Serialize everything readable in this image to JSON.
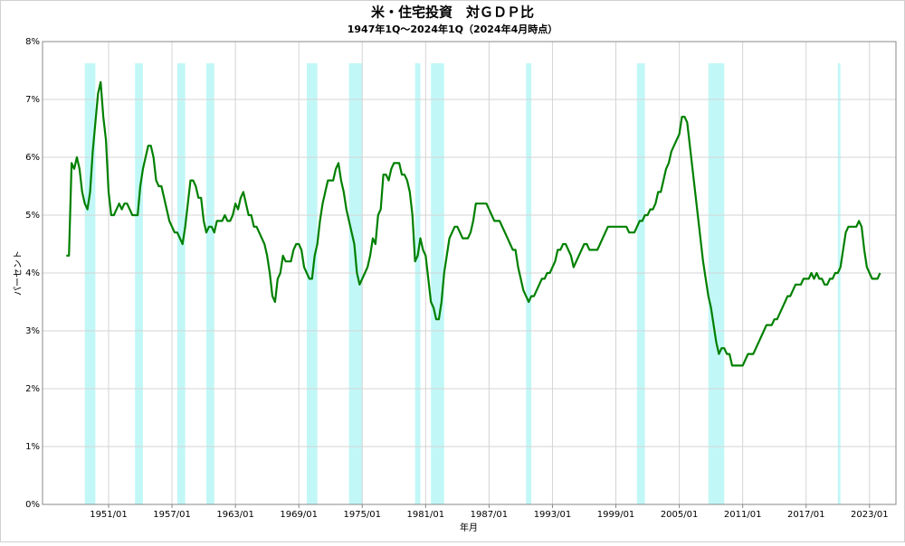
{
  "chart_data": {
    "type": "line",
    "title": "米・住宅投資　対ＧＤＰ比",
    "subtitle": "1947年1Q～2024年1Q（2024年4月時点）",
    "xlabel": "年月",
    "ylabel": "パーセント",
    "xlim": [
      "1944/10",
      "2025/07"
    ],
    "xticks": [
      "1951/01",
      "1957/01",
      "1963/01",
      "1969/01",
      "1975/01",
      "1981/01",
      "1987/01",
      "1993/01",
      "1999/01",
      "2005/01",
      "2011/01",
      "2017/01",
      "2023/01"
    ],
    "ylim": [
      0,
      8
    ],
    "yticks": [
      {
        "value": 0,
        "label": "0%"
      },
      {
        "value": 1,
        "label": "1%"
      },
      {
        "value": 2,
        "label": "2%"
      },
      {
        "value": 3,
        "label": "3%"
      },
      {
        "value": 4,
        "label": "4%"
      },
      {
        "value": 5,
        "label": "5%"
      },
      {
        "value": 6,
        "label": "6%"
      },
      {
        "value": 7,
        "label": "7%"
      },
      {
        "value": 8,
        "label": "8%"
      }
    ],
    "grid": true,
    "recession_color": "#8ff0f0",
    "recessions": [
      [
        "1948/10",
        "1949/10"
      ],
      [
        "1953/07",
        "1954/04"
      ],
      [
        "1957/07",
        "1958/04"
      ],
      [
        "1960/04",
        "1961/01"
      ],
      [
        "1969/10",
        "1970/10"
      ],
      [
        "1973/10",
        "1975/01"
      ],
      [
        "1980/01",
        "1980/07"
      ],
      [
        "1981/07",
        "1982/10"
      ],
      [
        "1990/07",
        "1991/01"
      ],
      [
        "2001/01",
        "2001/10"
      ],
      [
        "2007/10",
        "2009/04"
      ],
      [
        "2020/01",
        "2020/04"
      ]
    ],
    "x": [
      "1947/01",
      "1947/04",
      "1947/07",
      "1947/10",
      "1948/01",
      "1948/04",
      "1948/07",
      "1948/10",
      "1949/01",
      "1949/04",
      "1949/07",
      "1949/10",
      "1950/01",
      "1950/04",
      "1950/07",
      "1950/10",
      "1951/01",
      "1951/04",
      "1951/07",
      "1951/10",
      "1952/01",
      "1952/04",
      "1952/07",
      "1952/10",
      "1953/01",
      "1953/04",
      "1953/07",
      "1953/10",
      "1954/01",
      "1954/04",
      "1954/07",
      "1954/10",
      "1955/01",
      "1955/04",
      "1955/07",
      "1955/10",
      "1956/01",
      "1956/04",
      "1956/07",
      "1956/10",
      "1957/01",
      "1957/04",
      "1957/07",
      "1957/10",
      "1958/01",
      "1958/04",
      "1958/07",
      "1958/10",
      "1959/01",
      "1959/04",
      "1959/07",
      "1959/10",
      "1960/01",
      "1960/04",
      "1960/07",
      "1960/10",
      "1961/01",
      "1961/04",
      "1961/07",
      "1961/10",
      "1962/01",
      "1962/04",
      "1962/07",
      "1962/10",
      "1963/01",
      "1963/04",
      "1963/07",
      "1963/10",
      "1964/01",
      "1964/04",
      "1964/07",
      "1964/10",
      "1965/01",
      "1965/04",
      "1965/07",
      "1965/10",
      "1966/01",
      "1966/04",
      "1966/07",
      "1966/10",
      "1967/01",
      "1967/04",
      "1967/07",
      "1967/10",
      "1968/01",
      "1968/04",
      "1968/07",
      "1968/10",
      "1969/01",
      "1969/04",
      "1969/07",
      "1969/10",
      "1970/01",
      "1970/04",
      "1970/07",
      "1970/10",
      "1971/01",
      "1971/04",
      "1971/07",
      "1971/10",
      "1972/01",
      "1972/04",
      "1972/07",
      "1972/10",
      "1973/01",
      "1973/04",
      "1973/07",
      "1973/10",
      "1974/01",
      "1974/04",
      "1974/07",
      "1974/10",
      "1975/01",
      "1975/04",
      "1975/07",
      "1975/10",
      "1976/01",
      "1976/04",
      "1976/07",
      "1976/10",
      "1977/01",
      "1977/04",
      "1977/07",
      "1977/10",
      "1978/01",
      "1978/04",
      "1978/07",
      "1978/10",
      "1979/01",
      "1979/04",
      "1979/07",
      "1979/10",
      "1980/01",
      "1980/04",
      "1980/07",
      "1980/10",
      "1981/01",
      "1981/04",
      "1981/07",
      "1981/10",
      "1982/01",
      "1982/04",
      "1982/07",
      "1982/10",
      "1983/01",
      "1983/04",
      "1983/07",
      "1983/10",
      "1984/01",
      "1984/04",
      "1984/07",
      "1984/10",
      "1985/01",
      "1985/04",
      "1985/07",
      "1985/10",
      "1986/01",
      "1986/04",
      "1986/07",
      "1986/10",
      "1987/01",
      "1987/04",
      "1987/07",
      "1987/10",
      "1988/01",
      "1988/04",
      "1988/07",
      "1988/10",
      "1989/01",
      "1989/04",
      "1989/07",
      "1989/10",
      "1990/01",
      "1990/04",
      "1990/07",
      "1990/10",
      "1991/01",
      "1991/04",
      "1991/07",
      "1991/10",
      "1992/01",
      "1992/04",
      "1992/07",
      "1992/10",
      "1993/01",
      "1993/04",
      "1993/07",
      "1993/10",
      "1994/01",
      "1994/04",
      "1994/07",
      "1994/10",
      "1995/01",
      "1995/04",
      "1995/07",
      "1995/10",
      "1996/01",
      "1996/04",
      "1996/07",
      "1996/10",
      "1997/01",
      "1997/04",
      "1997/07",
      "1997/10",
      "1998/01",
      "1998/04",
      "1998/07",
      "1998/10",
      "1999/01",
      "1999/04",
      "1999/07",
      "1999/10",
      "2000/01",
      "2000/04",
      "2000/07",
      "2000/10",
      "2001/01",
      "2001/04",
      "2001/07",
      "2001/10",
      "2002/01",
      "2002/04",
      "2002/07",
      "2002/10",
      "2003/01",
      "2003/04",
      "2003/07",
      "2003/10",
      "2004/01",
      "2004/04",
      "2004/07",
      "2004/10",
      "2005/01",
      "2005/04",
      "2005/07",
      "2005/10",
      "2006/01",
      "2006/04",
      "2006/07",
      "2006/10",
      "2007/01",
      "2007/04",
      "2007/07",
      "2007/10",
      "2008/01",
      "2008/04",
      "2008/07",
      "2008/10",
      "2009/01",
      "2009/04",
      "2009/07",
      "2009/10",
      "2010/01",
      "2010/04",
      "2010/07",
      "2010/10",
      "2011/01",
      "2011/04",
      "2011/07",
      "2011/10",
      "2012/01",
      "2012/04",
      "2012/07",
      "2012/10",
      "2013/01",
      "2013/04",
      "2013/07",
      "2013/10",
      "2014/01",
      "2014/04",
      "2014/07",
      "2014/10",
      "2015/01",
      "2015/04",
      "2015/07",
      "2015/10",
      "2016/01",
      "2016/04",
      "2016/07",
      "2016/10",
      "2017/01",
      "2017/04",
      "2017/07",
      "2017/10",
      "2018/01",
      "2018/04",
      "2018/07",
      "2018/10",
      "2019/01",
      "2019/04",
      "2019/07",
      "2019/10",
      "2020/01",
      "2020/04",
      "2020/07",
      "2020/10",
      "2021/01",
      "2021/04",
      "2021/07",
      "2021/10",
      "2022/01",
      "2022/04",
      "2022/07",
      "2022/10",
      "2023/01",
      "2023/04",
      "2023/07",
      "2023/10",
      "2024/01"
    ],
    "series": [
      {
        "color": "#008000",
        "values": [
          4.3,
          4.3,
          5.9,
          5.8,
          6.0,
          5.8,
          5.4,
          5.2,
          5.1,
          5.4,
          6.1,
          6.6,
          7.1,
          7.3,
          6.7,
          6.3,
          5.4,
          5.0,
          5.0,
          5.1,
          5.2,
          5.1,
          5.2,
          5.2,
          5.1,
          5.0,
          5.0,
          5.0,
          5.5,
          5.8,
          6.0,
          6.2,
          6.2,
          6.0,
          5.6,
          5.5,
          5.5,
          5.3,
          5.1,
          4.9,
          4.8,
          4.7,
          4.7,
          4.6,
          4.5,
          4.8,
          5.2,
          5.6,
          5.6,
          5.5,
          5.3,
          5.3,
          4.9,
          4.7,
          4.8,
          4.8,
          4.7,
          4.9,
          4.9,
          4.9,
          5.0,
          4.9,
          4.9,
          5.0,
          5.2,
          5.1,
          5.3,
          5.4,
          5.2,
          5.0,
          5.0,
          4.8,
          4.8,
          4.7,
          4.6,
          4.5,
          4.3,
          4.0,
          3.6,
          3.5,
          3.9,
          4.0,
          4.3,
          4.2,
          4.2,
          4.2,
          4.4,
          4.5,
          4.5,
          4.4,
          4.1,
          4.0,
          3.9,
          3.9,
          4.3,
          4.5,
          4.9,
          5.2,
          5.4,
          5.6,
          5.6,
          5.6,
          5.8,
          5.9,
          5.6,
          5.4,
          5.1,
          4.9,
          4.7,
          4.5,
          4.0,
          3.8,
          3.9,
          4.0,
          4.1,
          4.3,
          4.6,
          4.5,
          5.0,
          5.1,
          5.7,
          5.7,
          5.6,
          5.8,
          5.9,
          5.9,
          5.9,
          5.7,
          5.7,
          5.6,
          5.4,
          5.0,
          4.2,
          4.3,
          4.6,
          4.4,
          4.3,
          3.9,
          3.5,
          3.4,
          3.2,
          3.2,
          3.5,
          4.0,
          4.3,
          4.6,
          4.7,
          4.8,
          4.8,
          4.7,
          4.6,
          4.6,
          4.6,
          4.7,
          4.9,
          5.2,
          5.2,
          5.2,
          5.2,
          5.2,
          5.1,
          5.0,
          4.9,
          4.9,
          4.9,
          4.8,
          4.7,
          4.6,
          4.5,
          4.4,
          4.4,
          4.1,
          3.9,
          3.7,
          3.6,
          3.5,
          3.6,
          3.6,
          3.7,
          3.8,
          3.9,
          3.9,
          4.0,
          4.0,
          4.1,
          4.2,
          4.4,
          4.4,
          4.5,
          4.5,
          4.4,
          4.3,
          4.1,
          4.2,
          4.3,
          4.4,
          4.5,
          4.5,
          4.4,
          4.4,
          4.4,
          4.4,
          4.5,
          4.6,
          4.7,
          4.8,
          4.8,
          4.8,
          4.8,
          4.8,
          4.8,
          4.8,
          4.8,
          4.7,
          4.7,
          4.7,
          4.8,
          4.9,
          4.9,
          5.0,
          5.0,
          5.1,
          5.1,
          5.2,
          5.4,
          5.4,
          5.6,
          5.8,
          5.9,
          6.1,
          6.2,
          6.3,
          6.4,
          6.7,
          6.7,
          6.6,
          6.2,
          5.8,
          5.4,
          5.0,
          4.6,
          4.2,
          3.9,
          3.6,
          3.4,
          3.1,
          2.8,
          2.6,
          2.7,
          2.7,
          2.6,
          2.6,
          2.4,
          2.4,
          2.4,
          2.4,
          2.4,
          2.5,
          2.6,
          2.6,
          2.6,
          2.7,
          2.8,
          2.9,
          3.0,
          3.1,
          3.1,
          3.1,
          3.2,
          3.2,
          3.3,
          3.4,
          3.5,
          3.6,
          3.6,
          3.7,
          3.8,
          3.8,
          3.8,
          3.9,
          3.9,
          3.9,
          4.0,
          3.9,
          4.0,
          3.9,
          3.9,
          3.8,
          3.8,
          3.9,
          3.9,
          4.0,
          4.0,
          4.1,
          4.4,
          4.7,
          4.8,
          4.8,
          4.8,
          4.8,
          4.9,
          4.8,
          4.4,
          4.1,
          4.0,
          3.9,
          3.9,
          3.9,
          4.0
        ]
      }
    ]
  }
}
